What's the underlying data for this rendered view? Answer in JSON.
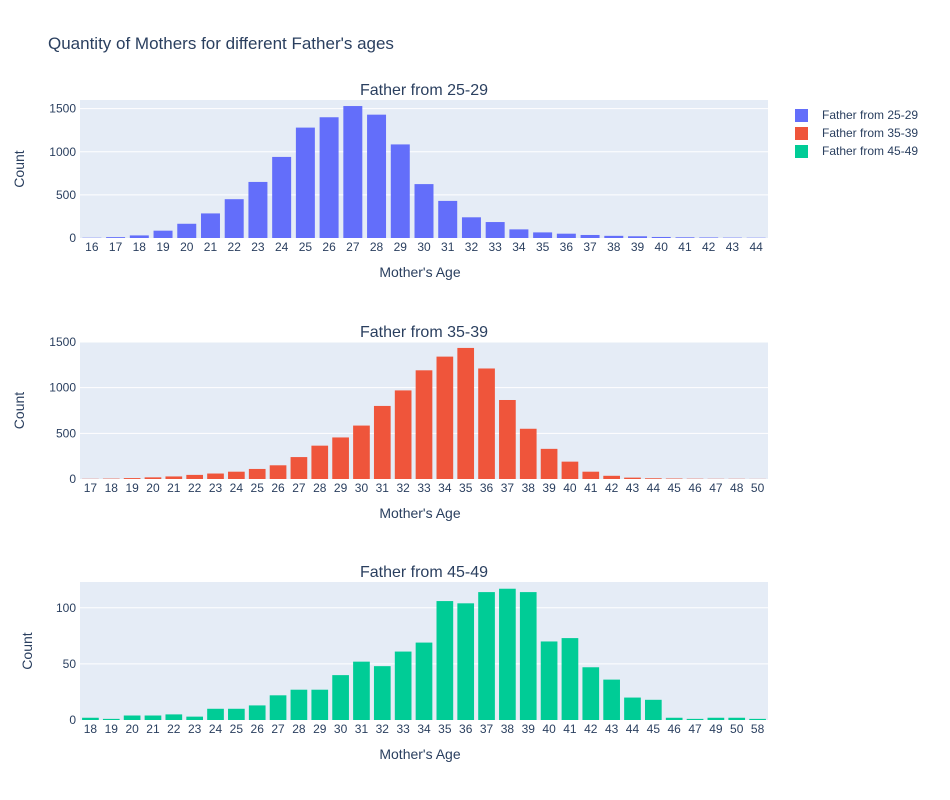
{
  "title": "Quantity of Mothers for different Father's ages",
  "legend": {
    "items": [
      {
        "label": "Father from 25-29",
        "color": "#636efa"
      },
      {
        "label": "Father from 35-39",
        "color": "#ef553b"
      },
      {
        "label": "Father from 45-49",
        "color": "#00cc96"
      }
    ]
  },
  "chart_data": [
    {
      "type": "bar",
      "title": "Father from 25-29",
      "xlabel": "Mother's Age",
      "ylabel": "Count",
      "color": "#636efa",
      "ylim": [
        0,
        1600
      ],
      "yticks": [
        0,
        500,
        1000,
        1500
      ],
      "categories": [
        "16",
        "17",
        "18",
        "19",
        "20",
        "21",
        "22",
        "23",
        "24",
        "25",
        "26",
        "27",
        "28",
        "29",
        "30",
        "31",
        "32",
        "33",
        "34",
        "35",
        "36",
        "37",
        "38",
        "39",
        "40",
        "41",
        "42",
        "43",
        "44"
      ],
      "values": [
        3,
        10,
        30,
        85,
        165,
        285,
        450,
        650,
        940,
        1280,
        1400,
        1530,
        1430,
        1085,
        625,
        430,
        240,
        185,
        100,
        65,
        50,
        35,
        25,
        20,
        12,
        8,
        6,
        4,
        3
      ]
    },
    {
      "type": "bar",
      "title": "Father from 35-39",
      "xlabel": "Mother's Age",
      "ylabel": "Count",
      "color": "#ef553b",
      "ylim": [
        0,
        1500
      ],
      "yticks": [
        0,
        500,
        1000,
        1500
      ],
      "categories": [
        "17",
        "18",
        "19",
        "20",
        "21",
        "22",
        "23",
        "24",
        "25",
        "26",
        "27",
        "28",
        "29",
        "30",
        "31",
        "32",
        "33",
        "34",
        "35",
        "36",
        "37",
        "38",
        "39",
        "40",
        "41",
        "42",
        "43",
        "44",
        "45",
        "46",
        "47",
        "48",
        "50"
      ],
      "values": [
        2,
        4,
        10,
        18,
        28,
        45,
        60,
        80,
        110,
        150,
        240,
        365,
        455,
        585,
        800,
        970,
        1190,
        1340,
        1435,
        1210,
        865,
        550,
        330,
        190,
        80,
        35,
        15,
        8,
        5,
        3,
        2,
        2,
        1
      ]
    },
    {
      "type": "bar",
      "title": "Father from 45-49",
      "xlabel": "Mother's Age",
      "ylabel": "Count",
      "color": "#00cc96",
      "ylim": [
        0,
        123
      ],
      "yticks": [
        0,
        50,
        100
      ],
      "categories": [
        "18",
        "19",
        "20",
        "21",
        "22",
        "23",
        "24",
        "25",
        "26",
        "27",
        "28",
        "29",
        "30",
        "31",
        "32",
        "33",
        "34",
        "35",
        "36",
        "37",
        "38",
        "39",
        "40",
        "41",
        "42",
        "43",
        "44",
        "45",
        "46",
        "47",
        "49",
        "50",
        "58"
      ],
      "values": [
        2,
        1,
        4,
        4,
        5,
        3,
        10,
        10,
        13,
        22,
        27,
        27,
        40,
        52,
        48,
        61,
        69,
        106,
        104,
        114,
        117,
        114,
        70,
        73,
        47,
        36,
        20,
        18,
        2,
        1,
        2,
        2,
        1
      ]
    }
  ]
}
